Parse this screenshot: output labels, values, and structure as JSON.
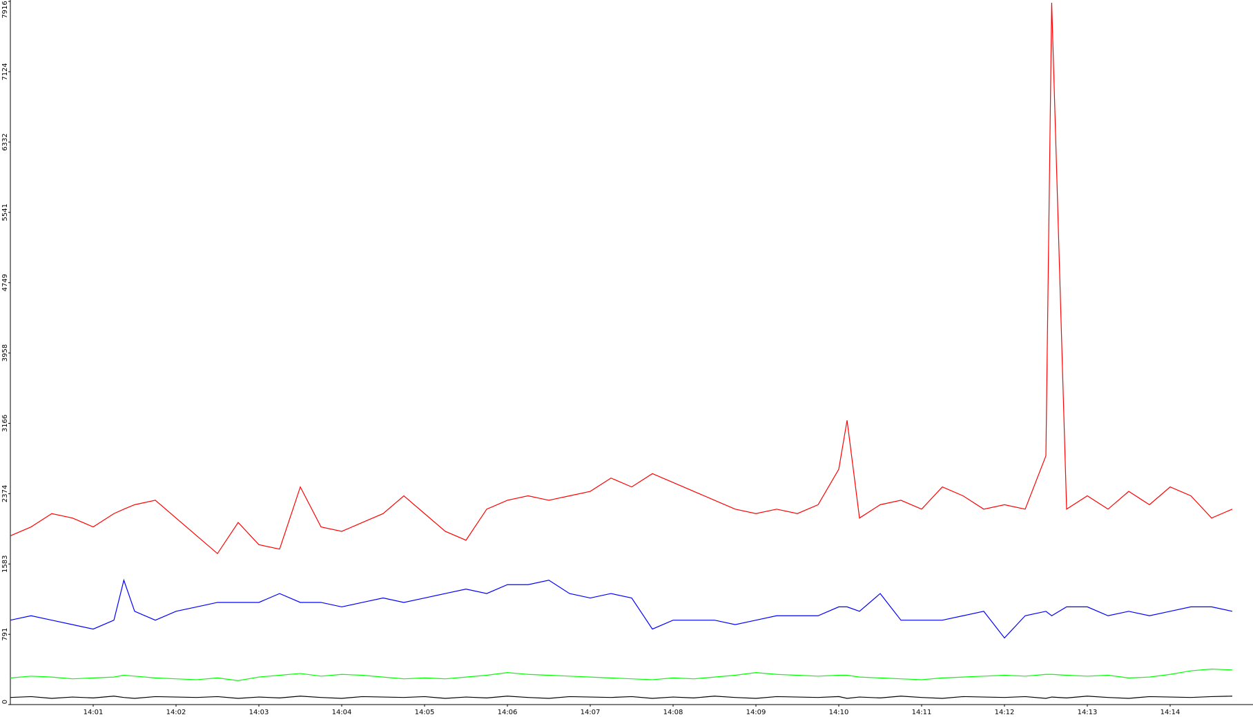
{
  "chart_data": {
    "type": "line",
    "x": [
      0,
      0.25,
      0.5,
      0.75,
      1,
      1.25,
      1.37,
      1.5,
      1.75,
      2,
      2.25,
      2.5,
      2.75,
      3,
      3.25,
      3.5,
      3.75,
      4,
      4.25,
      4.5,
      4.75,
      5,
      5.25,
      5.5,
      5.75,
      6,
      6.25,
      6.5,
      6.75,
      7,
      7.25,
      7.5,
      7.75,
      8,
      8.25,
      8.5,
      8.75,
      9,
      9.25,
      9.5,
      9.75,
      10,
      10.1,
      10.25,
      10.5,
      10.75,
      11,
      11.25,
      11.5,
      11.75,
      12,
      12.25,
      12.5,
      12.57,
      12.75,
      13,
      13.25,
      13.5,
      13.75,
      14,
      14.25,
      14.5,
      14.75
    ],
    "xlim": [
      0,
      15
    ],
    "xticks": [
      {
        "value": 1,
        "label": "14:01"
      },
      {
        "value": 2,
        "label": "14:02"
      },
      {
        "value": 3,
        "label": "14:03"
      },
      {
        "value": 4,
        "label": "14:04"
      },
      {
        "value": 5,
        "label": "14:05"
      },
      {
        "value": 6,
        "label": "14:06"
      },
      {
        "value": 7,
        "label": "14:07"
      },
      {
        "value": 8,
        "label": "14:08"
      },
      {
        "value": 9,
        "label": "14:09"
      },
      {
        "value": 10,
        "label": "14:10"
      },
      {
        "value": 11,
        "label": "14:11"
      },
      {
        "value": 12,
        "label": "14:12"
      },
      {
        "value": 13,
        "label": "14:13"
      },
      {
        "value": 14,
        "label": "14:14"
      }
    ],
    "ylim": [
      0,
      7916
    ],
    "yticks": [
      0,
      791,
      1583,
      2374,
      3166,
      3958,
      4749,
      5541,
      6332,
      7124,
      7916
    ],
    "series": [
      {
        "color": "#ff0000",
        "values": [
          1900,
          2000,
          2150,
          2100,
          2000,
          2150,
          2200,
          2250,
          2300,
          2100,
          1900,
          1700,
          2050,
          1800,
          1750,
          2450,
          2000,
          1950,
          2050,
          2150,
          2350,
          2150,
          1950,
          1850,
          2200,
          2300,
          2350,
          2300,
          2350,
          2400,
          2550,
          2450,
          2600,
          2500,
          2400,
          2300,
          2200,
          2150,
          2200,
          2150,
          2250,
          2650,
          3200,
          2100,
          2250,
          2300,
          2200,
          2450,
          2350,
          2200,
          2250,
          2200,
          2800,
          7900,
          2200,
          2350,
          2200,
          2400,
          2250,
          2450,
          2350,
          2100,
          2200
        ]
      },
      {
        "color": "#0000ff",
        "values": [
          950,
          1000,
          950,
          900,
          850,
          950,
          1400,
          1050,
          950,
          1050,
          1100,
          1150,
          1150,
          1150,
          1250,
          1150,
          1150,
          1100,
          1150,
          1200,
          1150,
          1200,
          1250,
          1300,
          1250,
          1350,
          1350,
          1400,
          1250,
          1200,
          1250,
          1200,
          850,
          950,
          950,
          950,
          900,
          950,
          1000,
          1000,
          1000,
          1100,
          1100,
          1050,
          1250,
          950,
          950,
          950,
          1000,
          1050,
          750,
          1000,
          1050,
          1000,
          1100,
          1100,
          1000,
          1050,
          1000,
          1050,
          1100,
          1100,
          1050
        ]
      },
      {
        "color": "#00ff00",
        "values": [
          300,
          320,
          310,
          290,
          300,
          310,
          330,
          320,
          300,
          290,
          280,
          300,
          270,
          310,
          330,
          350,
          320,
          340,
          330,
          310,
          290,
          300,
          290,
          310,
          330,
          360,
          340,
          330,
          320,
          310,
          300,
          290,
          280,
          300,
          290,
          310,
          330,
          360,
          340,
          330,
          320,
          330,
          330,
          310,
          300,
          290,
          280,
          300,
          310,
          320,
          330,
          320,
          340,
          340,
          330,
          320,
          330,
          300,
          310,
          340,
          380,
          400,
          390
        ]
      },
      {
        "color": "#000000",
        "values": [
          80,
          90,
          70,
          85,
          75,
          95,
          80,
          70,
          90,
          85,
          80,
          90,
          70,
          85,
          75,
          95,
          80,
          70,
          90,
          85,
          80,
          90,
          70,
          85,
          75,
          95,
          80,
          70,
          90,
          85,
          80,
          90,
          70,
          85,
          75,
          95,
          80,
          70,
          90,
          85,
          80,
          90,
          70,
          85,
          75,
          95,
          80,
          70,
          90,
          85,
          80,
          90,
          70,
          85,
          75,
          95,
          80,
          70,
          90,
          85,
          80,
          90,
          95
        ]
      }
    ]
  }
}
